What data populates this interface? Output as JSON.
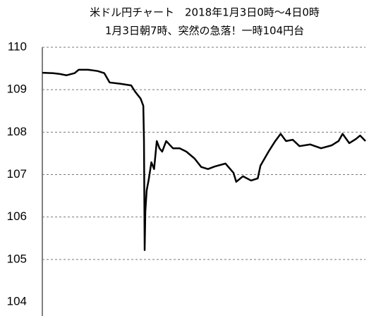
{
  "chart_data": {
    "type": "line",
    "title": "米ドル円チャート　2018年1月3日0時～4日0時",
    "subtitle": "1月3日朝7時、突然の急落！一時104円台",
    "x": [
      0,
      0.8,
      1.3,
      1.8,
      2.4,
      2.7,
      3.4,
      4.1,
      4.6,
      5.0,
      5.8,
      6.6,
      6.9,
      7.3,
      7.5,
      7.55,
      7.6,
      7.65,
      7.75,
      7.9,
      8.1,
      8.3,
      8.5,
      8.7,
      8.9,
      9.2,
      9.7,
      10.2,
      10.7,
      11.3,
      11.8,
      12.3,
      12.8,
      13.6,
      14.2,
      14.4,
      14.9,
      15.5,
      16.0,
      16.2,
      16.8,
      17.3,
      17.7,
      18.1,
      18.6,
      19.1,
      19.9,
      20.7,
      21.5,
      22.0,
      22.3,
      22.8,
      23.3,
      23.6,
      24
    ],
    "values": [
      109.4,
      109.39,
      109.37,
      109.34,
      109.39,
      109.47,
      109.47,
      109.44,
      109.39,
      109.17,
      109.14,
      109.1,
      108.95,
      108.79,
      108.62,
      107.79,
      105.22,
      106.13,
      106.63,
      106.88,
      107.29,
      107.13,
      107.79,
      107.62,
      107.54,
      107.79,
      107.62,
      107.62,
      107.54,
      107.38,
      107.18,
      107.13,
      107.19,
      107.26,
      107.04,
      106.83,
      106.96,
      106.86,
      106.91,
      107.21,
      107.54,
      107.79,
      107.96,
      107.79,
      107.82,
      107.67,
      107.71,
      107.62,
      107.69,
      107.79,
      107.96,
      107.74,
      107.84,
      107.92,
      107.79
    ],
    "color": "#000000",
    "xlim": [
      0,
      24
    ],
    "ylim": [
      104,
      110
    ],
    "yticks": [
      104,
      105,
      106,
      107,
      108,
      109,
      110
    ],
    "grid": true
  }
}
